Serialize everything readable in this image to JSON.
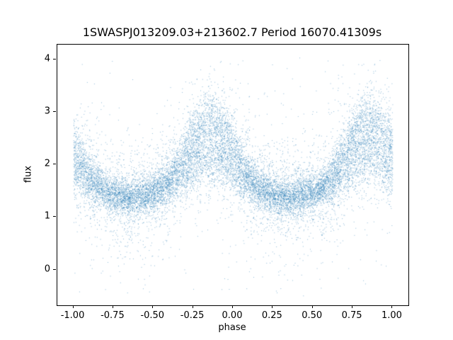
{
  "chart_data": {
    "type": "scatter",
    "title": "1SWASPJ013209.03+213602.7 Period 16070.41309s",
    "xlabel": "phase",
    "ylabel": "flux",
    "xlim": [
      -1.1,
      1.1
    ],
    "ylim": [
      -0.68,
      4.28
    ],
    "x_ticks": [
      -1.0,
      -0.75,
      -0.5,
      -0.25,
      0.0,
      0.25,
      0.5,
      0.75,
      1.0
    ],
    "x_tick_labels": [
      "-1.00",
      "-0.75",
      "-0.50",
      "-0.25",
      "0.00",
      "0.25",
      "0.50",
      "0.75",
      "1.00"
    ],
    "y_ticks": [
      0,
      1,
      2,
      3,
      4
    ],
    "y_tick_labels": [
      "0",
      "1",
      "2",
      "3",
      "4"
    ],
    "grid": false,
    "legend": "none",
    "point_color": "#1f77b4",
    "point_alpha": 0.5,
    "point_size": 1,
    "description": "Folded light curve scatter: dense baseline band near flux ~1.4 across all phases, with broad brightening peaks reaching flux ~3.2 centered near phase -0.15 and 0.85 (repeating with period 1.0 in phase). Total vertical scatter spans roughly -0.45 to 4.05.",
    "generator": {
      "seed": 42,
      "n_points": 16000,
      "phase_range": [
        -1,
        1
      ],
      "baseline_flux": 1.38,
      "peak_phase": 0.86,
      "peak_amplitude": 1.45,
      "peak_sigma": 0.16,
      "bump_scale_min": 0.3,
      "bump_scale_max": 1.25,
      "noise_components": [
        {
          "weight": 0.68,
          "sigma": 0.17
        },
        {
          "weight": 0.27,
          "sigma": 0.45
        },
        {
          "weight": 0.05,
          "sigma": 0.85
        }
      ],
      "outlier_fraction": 0.012,
      "outlier_range": [
        -0.45,
        4.05
      ],
      "flux_clip": [
        -0.5,
        4.1
      ]
    }
  }
}
